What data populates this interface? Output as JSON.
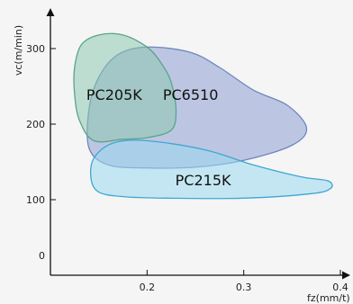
{
  "chart_data": {
    "type": "area",
    "title": "",
    "xlabel": "fz(mm/t)",
    "ylabel": "vc(m/min)",
    "xlim": [
      0.1,
      0.4
    ],
    "ylim": [
      0,
      350
    ],
    "x_ticks": [
      {
        "value": 0.2,
        "label": "0.2"
      },
      {
        "value": 0.3,
        "label": "0.3"
      },
      {
        "value": 0.4,
        "label": "0.4"
      }
    ],
    "y_ticks": [
      {
        "value": 0,
        "label": "0"
      },
      {
        "value": 100,
        "label": "100"
      },
      {
        "value": 200,
        "label": "200"
      },
      {
        "value": 300,
        "label": "300"
      }
    ],
    "grid": false,
    "regions": [
      {
        "name": "PC6510",
        "label_at": [
          0.245,
          232
        ],
        "fill": "#8c9ed2",
        "stroke": "#6f86bf",
        "boundary": [
          [
            0.2,
            302
          ],
          [
            0.245,
            295
          ],
          [
            0.275,
            275
          ],
          [
            0.31,
            245
          ],
          [
            0.345,
            225
          ],
          [
            0.365,
            195
          ],
          [
            0.35,
            172
          ],
          [
            0.3,
            152
          ],
          [
            0.25,
            143
          ],
          [
            0.2,
            142
          ],
          [
            0.16,
            146
          ],
          [
            0.14,
            168
          ],
          [
            0.14,
            220
          ],
          [
            0.15,
            262
          ],
          [
            0.17,
            292
          ]
        ]
      },
      {
        "name": "PC205K",
        "label_at": [
          0.166,
          232
        ],
        "fill": "#8cc9ae",
        "stroke": "#5aa48a",
        "boundary": [
          [
            0.15,
            318
          ],
          [
            0.175,
            318
          ],
          [
            0.2,
            302
          ],
          [
            0.215,
            280
          ],
          [
            0.225,
            255
          ],
          [
            0.23,
            218
          ],
          [
            0.225,
            192
          ],
          [
            0.2,
            182
          ],
          [
            0.175,
            180
          ],
          [
            0.145,
            178
          ],
          [
            0.13,
            205
          ],
          [
            0.125,
            240
          ],
          [
            0.125,
            275
          ],
          [
            0.132,
            305
          ]
        ]
      },
      {
        "name": "PC215K",
        "label_at": [
          0.258,
          119
        ],
        "fill": "#9ad8ee",
        "stroke": "#3fa6d3",
        "boundary": [
          [
            0.165,
            175
          ],
          [
            0.2,
            178
          ],
          [
            0.26,
            166
          ],
          [
            0.31,
            146
          ],
          [
            0.36,
            130
          ],
          [
            0.387,
            125
          ],
          [
            0.39,
            115
          ],
          [
            0.37,
            108
          ],
          [
            0.3,
            102
          ],
          [
            0.22,
            102
          ],
          [
            0.175,
            104
          ],
          [
            0.15,
            110
          ],
          [
            0.142,
            128
          ],
          [
            0.145,
            155
          ]
        ]
      }
    ]
  }
}
